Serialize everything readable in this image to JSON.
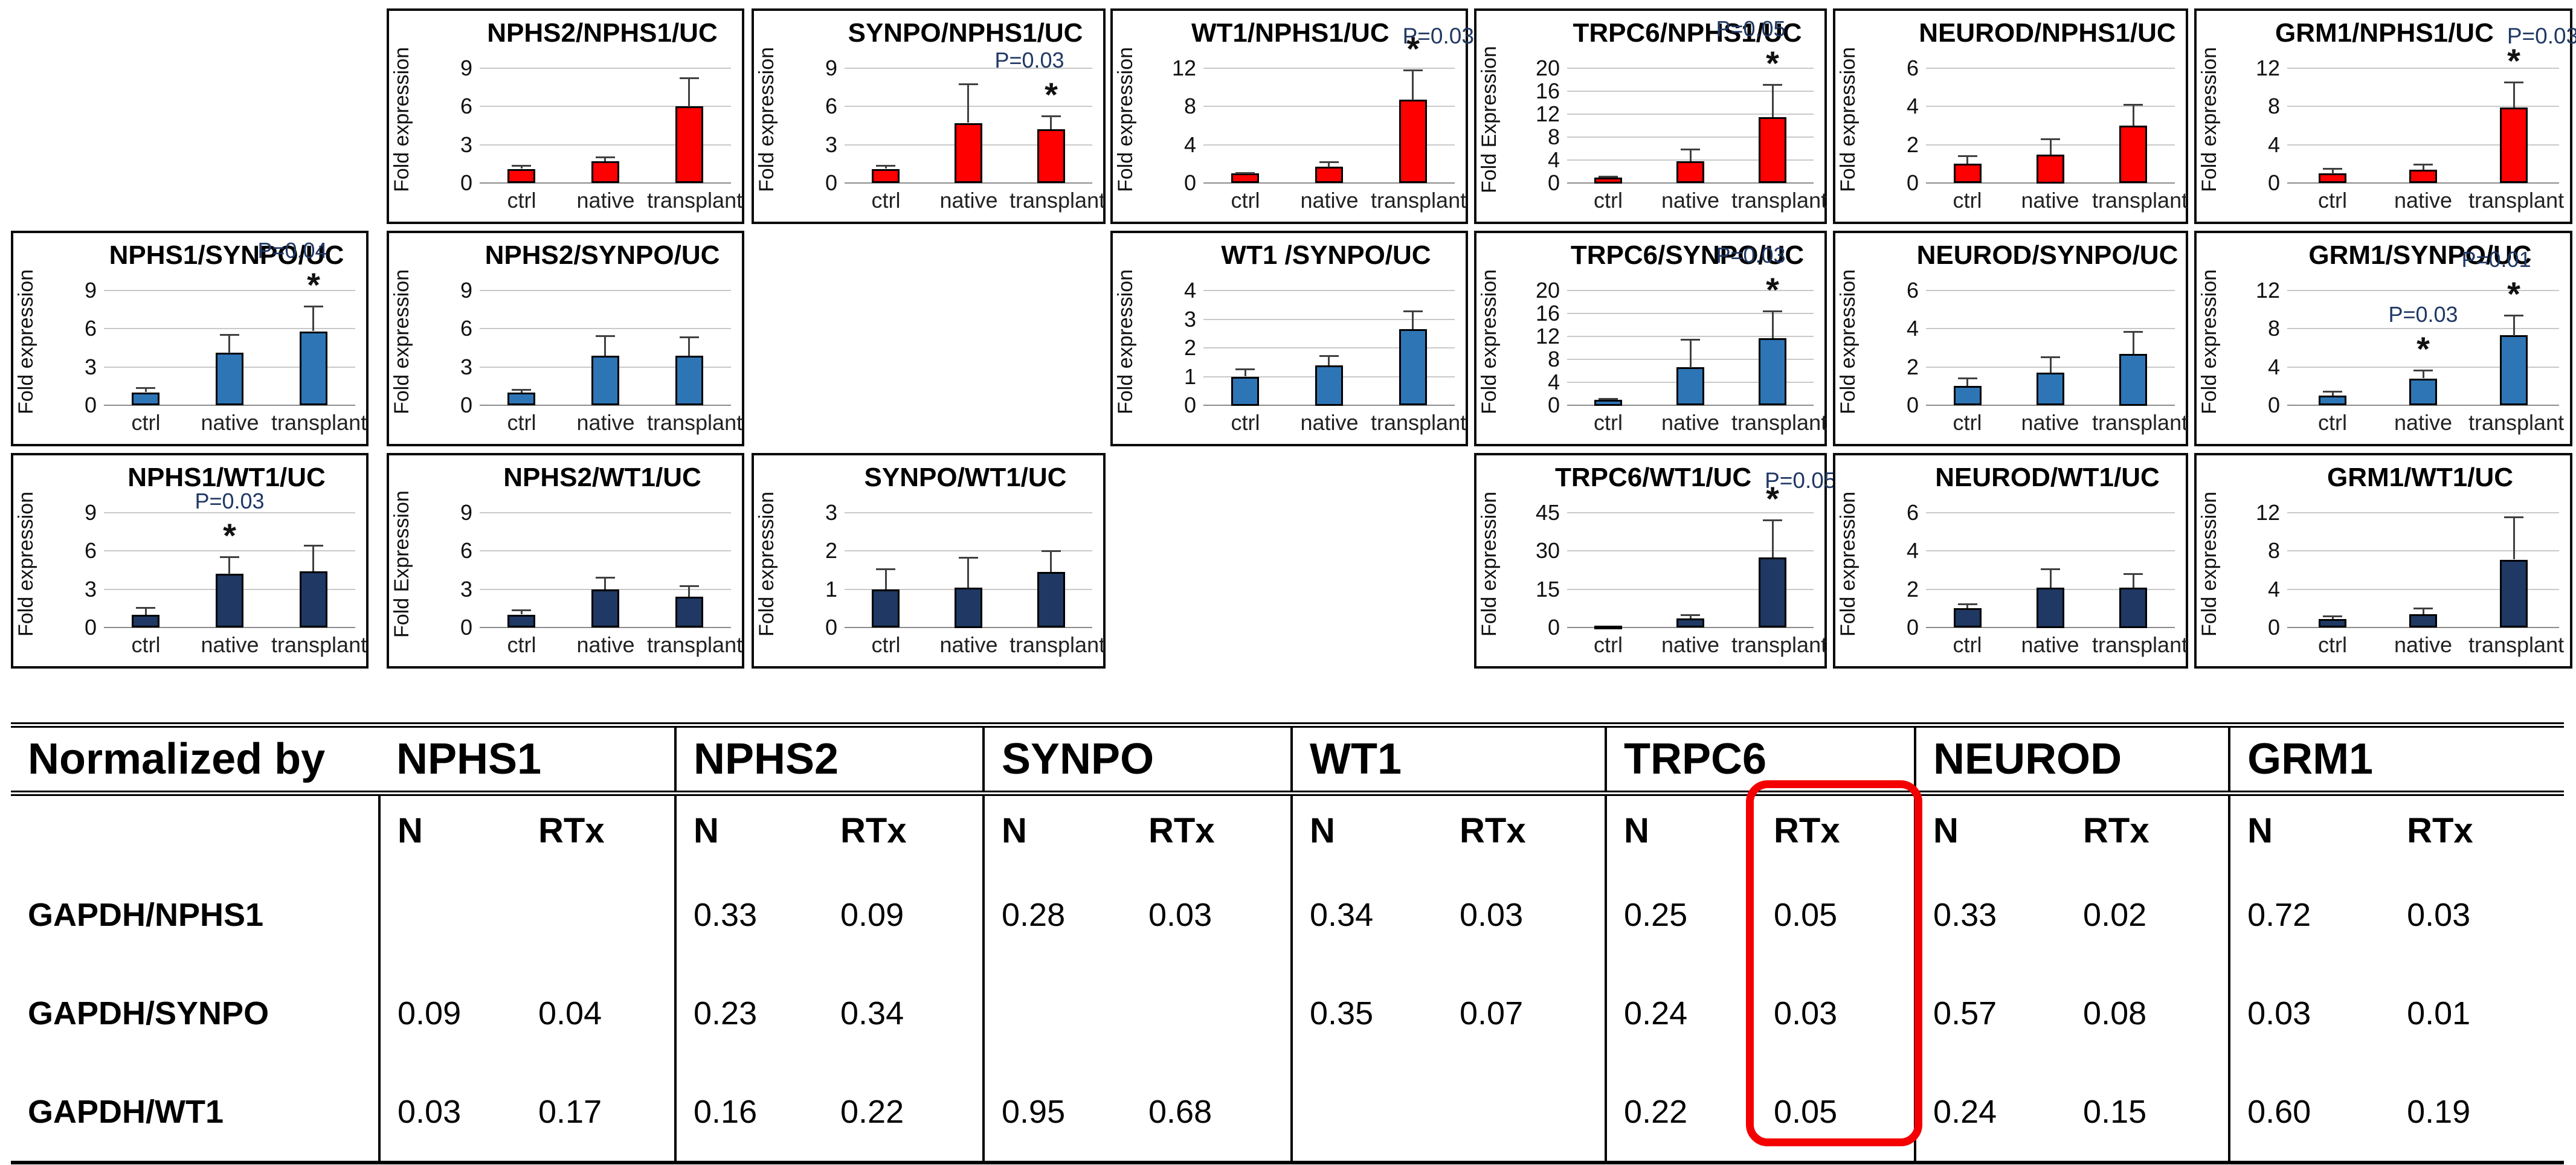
{
  "figure": {
    "background": "#FFFFFF",
    "categories": [
      "ctrl",
      "native",
      "transplant"
    ],
    "row_colors": {
      "nphs1_normalized": "#FE0000",
      "synpo_normalized": "#2E75B6",
      "wt1_normalized": "#1F3864"
    }
  },
  "chart_data": [
    {
      "type": "bar",
      "title": "NPHS2/NPHS1/UC",
      "p_title": "",
      "ylabel": "Fold expression",
      "yticks": [
        0,
        3,
        6,
        9
      ],
      "ymax": 9,
      "bar_color": "#FE0000",
      "categories": [
        "ctrl",
        "native",
        "transplant"
      ],
      "bars": [
        {
          "value": 1.1,
          "err": 0.3
        },
        {
          "value": 1.7,
          "err": 0.4
        },
        {
          "value": 6.0,
          "err": 2.3
        }
      ],
      "grid": {
        "row": 0,
        "col": 1
      }
    },
    {
      "type": "bar",
      "title": "SYNPO/NPHS1/UC",
      "p_title": "",
      "ylabel": "Fold expression",
      "yticks": [
        0,
        3,
        6,
        9
      ],
      "ymax": 9,
      "bar_color": "#FE0000",
      "categories": [
        "ctrl",
        "native",
        "transplant"
      ],
      "bars": [
        {
          "value": 1.1,
          "err": 0.3
        },
        {
          "value": 4.7,
          "err": 3.1
        },
        {
          "value": 4.2,
          "err": 1.1,
          "star": true,
          "p": "P=0.03"
        }
      ],
      "grid": {
        "row": 0,
        "col": 2
      }
    },
    {
      "type": "bar",
      "title": "WT1/NPHS1/UC",
      "p_title": "P=0.03",
      "ylabel": "Fold expression",
      "yticks": [
        0,
        4,
        8,
        12
      ],
      "ymax": 12,
      "bar_color": "#FE0000",
      "categories": [
        "ctrl",
        "native",
        "transplant"
      ],
      "bars": [
        {
          "value": 1.0,
          "err": 0.15
        },
        {
          "value": 1.7,
          "err": 0.6
        },
        {
          "value": 8.7,
          "err": 3.2,
          "star": true
        }
      ],
      "grid": {
        "row": 0,
        "col": 3
      }
    },
    {
      "type": "bar",
      "title": "TRPC6/NPHS1/UC",
      "p_title": "",
      "ylabel": "Fold Expression",
      "yticks": [
        0,
        4,
        8,
        12,
        16,
        20
      ],
      "ymax": 20,
      "bar_color": "#FE0000",
      "categories": [
        "ctrl",
        "native",
        "transplant"
      ],
      "bars": [
        {
          "value": 1.0,
          "err": 0.3
        },
        {
          "value": 3.8,
          "err": 2.2
        },
        {
          "value": 11.5,
          "err": 5.8,
          "star": true,
          "p": "P=0.05"
        }
      ],
      "grid": {
        "row": 0,
        "col": 4
      }
    },
    {
      "type": "bar",
      "title": "NEUROD/NPHS1/UC",
      "p_title": "",
      "ylabel": "Fold expression",
      "yticks": [
        0,
        2,
        4,
        6
      ],
      "ymax": 6,
      "bar_color": "#FE0000",
      "categories": [
        "ctrl",
        "native",
        "transplant"
      ],
      "bars": [
        {
          "value": 1.0,
          "err": 0.45
        },
        {
          "value": 1.5,
          "err": 0.85
        },
        {
          "value": 3.0,
          "err": 1.15
        }
      ],
      "grid": {
        "row": 0,
        "col": 5
      }
    },
    {
      "type": "bar",
      "title": "GRM1/NPHS1/UC",
      "p_title": "P=0.03",
      "ylabel": "Fold expression",
      "yticks": [
        0,
        4,
        8,
        12
      ],
      "ymax": 12,
      "bar_color": "#FE0000",
      "categories": [
        "ctrl",
        "native",
        "transplant"
      ],
      "bars": [
        {
          "value": 1.0,
          "err": 0.6
        },
        {
          "value": 1.4,
          "err": 0.6
        },
        {
          "value": 7.9,
          "err": 2.7,
          "star": true
        }
      ],
      "grid": {
        "row": 0,
        "col": 6
      }
    },
    {
      "type": "bar",
      "title": "NPHS1/SYNPO/UC",
      "p_title": "",
      "ylabel": "Fold expression",
      "yticks": [
        0,
        3,
        6,
        9
      ],
      "ymax": 9,
      "bar_color": "#2E75B6",
      "categories": [
        "ctrl",
        "native",
        "transplant"
      ],
      "bars": [
        {
          "value": 1.0,
          "err": 0.4
        },
        {
          "value": 4.1,
          "err": 1.5
        },
        {
          "value": 5.8,
          "err": 2.0,
          "star": true,
          "p": "P=0.04"
        }
      ],
      "grid": {
        "row": 1,
        "col": 0
      }
    },
    {
      "type": "bar",
      "title": "NPHS2/SYNPO/UC",
      "p_title": "",
      "ylabel": "Fold expression",
      "yticks": [
        0,
        3,
        6,
        9
      ],
      "ymax": 9,
      "bar_color": "#2E75B6",
      "categories": [
        "ctrl",
        "native",
        "transplant"
      ],
      "bars": [
        {
          "value": 1.0,
          "err": 0.3
        },
        {
          "value": 3.9,
          "err": 1.6
        },
        {
          "value": 3.9,
          "err": 1.5
        }
      ],
      "grid": {
        "row": 1,
        "col": 1
      }
    },
    {
      "type": "bar",
      "title": "WT1 /SYNPO/UC",
      "p_title": "",
      "ylabel": "Fold expression",
      "yticks": [
        0,
        1,
        2,
        3,
        4
      ],
      "ymax": 4,
      "bar_color": "#2E75B6",
      "categories": [
        "ctrl",
        "native",
        "transplant"
      ],
      "bars": [
        {
          "value": 1.0,
          "err": 0.28
        },
        {
          "value": 1.4,
          "err": 0.35
        },
        {
          "value": 2.65,
          "err": 0.65
        }
      ],
      "grid": {
        "row": 1,
        "col": 3
      }
    },
    {
      "type": "bar",
      "title": "TRPC6/SYNPO/UC",
      "p_title": "",
      "ylabel": "Fold expression",
      "yticks": [
        0,
        4,
        8,
        12,
        16,
        20
      ],
      "ymax": 20,
      "bar_color": "#2E75B6",
      "categories": [
        "ctrl",
        "native",
        "transplant"
      ],
      "bars": [
        {
          "value": 1.0,
          "err": 0.3
        },
        {
          "value": 6.6,
          "err": 5.0
        },
        {
          "value": 11.7,
          "err": 4.8,
          "star": true,
          "p": "P=0.03"
        }
      ],
      "grid": {
        "row": 1,
        "col": 4
      }
    },
    {
      "type": "bar",
      "title": "NEUROD/SYNPO/UC",
      "p_title": "",
      "ylabel": "Fold expression",
      "yticks": [
        0,
        2,
        4,
        6
      ],
      "ymax": 6,
      "bar_color": "#2E75B6",
      "categories": [
        "ctrl",
        "native",
        "transplant"
      ],
      "bars": [
        {
          "value": 1.0,
          "err": 0.45
        },
        {
          "value": 1.7,
          "err": 0.85
        },
        {
          "value": 2.7,
          "err": 1.2
        }
      ],
      "grid": {
        "row": 1,
        "col": 5
      }
    },
    {
      "type": "bar",
      "title": "GRM1/SYNPO/UC",
      "p_title": "",
      "ylabel": "Fold expression",
      "yticks": [
        0,
        4,
        8,
        12
      ],
      "ymax": 12,
      "bar_color": "#2E75B6",
      "categories": [
        "ctrl",
        "native",
        "transplant"
      ],
      "bars": [
        {
          "value": 1.0,
          "err": 0.5
        },
        {
          "value": 2.8,
          "err": 0.9,
          "star": true,
          "p": "P=0.03"
        },
        {
          "value": 7.3,
          "err": 2.2,
          "star": true,
          "p": "P=0.01"
        }
      ],
      "grid": {
        "row": 1,
        "col": 6
      }
    },
    {
      "type": "bar",
      "title": "NPHS1/WT1/UC",
      "p_title": "",
      "ylabel": "Fold expression",
      "yticks": [
        0,
        3,
        6,
        9
      ],
      "ymax": 9,
      "bar_color": "#1F3864",
      "categories": [
        "ctrl",
        "native",
        "transplant"
      ],
      "bars": [
        {
          "value": 1.0,
          "err": 0.6
        },
        {
          "value": 4.2,
          "err": 1.4,
          "star": true,
          "p": "P=0.03"
        },
        {
          "value": 4.4,
          "err": 2.1
        }
      ],
      "grid": {
        "row": 2,
        "col": 0
      }
    },
    {
      "type": "bar",
      "title": "NPHS2/WT1/UC",
      "p_title": "",
      "ylabel": "Fold Expression",
      "yticks": [
        0,
        3,
        6,
        9
      ],
      "ymax": 9,
      "bar_color": "#1F3864",
      "categories": [
        "ctrl",
        "native",
        "transplant"
      ],
      "bars": [
        {
          "value": 1.0,
          "err": 0.4
        },
        {
          "value": 3.0,
          "err": 1.0
        },
        {
          "value": 2.4,
          "err": 0.9
        }
      ],
      "grid": {
        "row": 2,
        "col": 1
      }
    },
    {
      "type": "bar",
      "title": "SYNPO/WT1/UC",
      "p_title": "",
      "ylabel": "Fold expression",
      "yticks": [
        0,
        1,
        2,
        3
      ],
      "ymax": 3,
      "bar_color": "#1F3864",
      "categories": [
        "ctrl",
        "native",
        "transplant"
      ],
      "bars": [
        {
          "value": 1.0,
          "err": 0.55
        },
        {
          "value": 1.05,
          "err": 0.8
        },
        {
          "value": 1.45,
          "err": 0.57
        }
      ],
      "grid": {
        "row": 2,
        "col": 2
      }
    },
    {
      "type": "bar",
      "title": "TRPC6/WT1/UC",
      "p_title": "P=0.05",
      "ylabel": "Fold expression",
      "yticks": [
        0,
        15,
        30,
        45
      ],
      "ymax": 45,
      "bar_color": "#1F3864",
      "categories": [
        "ctrl",
        "native",
        "transplant"
      ],
      "bars": [
        {
          "value": 0.8,
          "err": 0
        },
        {
          "value": 3.5,
          "err": 1.7
        },
        {
          "value": 27.5,
          "err": 15,
          "star": true
        }
      ],
      "grid": {
        "row": 2,
        "col": 4
      }
    },
    {
      "type": "bar",
      "title": "NEUROD/WT1/UC",
      "p_title": "",
      "ylabel": "Fold expression",
      "yticks": [
        0,
        2,
        4,
        6
      ],
      "ymax": 6,
      "bar_color": "#1F3864",
      "categories": [
        "ctrl",
        "native",
        "transplant"
      ],
      "bars": [
        {
          "value": 1.0,
          "err": 0.25
        },
        {
          "value": 2.1,
          "err": 1.0
        },
        {
          "value": 2.1,
          "err": 0.75
        }
      ],
      "grid": {
        "row": 2,
        "col": 5
      }
    },
    {
      "type": "bar",
      "title": "GRM1/WT1/UC",
      "p_title": "",
      "ylabel": "Fold expression",
      "yticks": [
        0,
        4,
        8,
        12
      ],
      "ymax": 12,
      "bar_color": "#1F3864",
      "categories": [
        "ctrl",
        "native",
        "transplant"
      ],
      "bars": [
        {
          "value": 0.9,
          "err": 0.35
        },
        {
          "value": 1.4,
          "err": 0.7
        },
        {
          "value": 7.1,
          "err": 4.5
        }
      ],
      "grid": {
        "row": 2,
        "col": 6
      }
    }
  ],
  "table": {
    "corner_label": "Normalized by",
    "groups": [
      "NPHS1",
      "NPHS2",
      "SYNPO",
      "WT1",
      "TRPC6",
      "NEUROD",
      "GRM1"
    ],
    "subheaders": [
      "N",
      "RTx"
    ],
    "rows": [
      {
        "label": "GAPDH/NPHS1",
        "values": [
          [
            "",
            ""
          ],
          [
            "0.33",
            "0.09"
          ],
          [
            "0.28",
            "0.03"
          ],
          [
            "0.34",
            "0.03"
          ],
          [
            "0.25",
            "0.05"
          ],
          [
            "0.33",
            "0.02"
          ],
          [
            "0.72",
            "0.03"
          ]
        ]
      },
      {
        "label": "GAPDH/SYNPO",
        "values": [
          [
            "0.09",
            "0.04"
          ],
          [
            "0.23",
            "0.34"
          ],
          [
            "",
            ""
          ],
          [
            "0.35",
            "0.07"
          ],
          [
            "0.24",
            "0.03"
          ],
          [
            "0.57",
            "0.08"
          ],
          [
            "0.03",
            "0.01"
          ]
        ]
      },
      {
        "label": "GAPDH/WT1",
        "values": [
          [
            "0.03",
            "0.17"
          ],
          [
            "0.16",
            "0.22"
          ],
          [
            "0.95",
            "0.68"
          ],
          [
            "",
            ""
          ],
          [
            "0.22",
            "0.05"
          ],
          [
            "0.24",
            "0.15"
          ],
          [
            "0.60",
            "0.19"
          ]
        ]
      }
    ],
    "highlight": {
      "group": "TRPC6",
      "column": "RTx",
      "color": "#F40000"
    }
  }
}
